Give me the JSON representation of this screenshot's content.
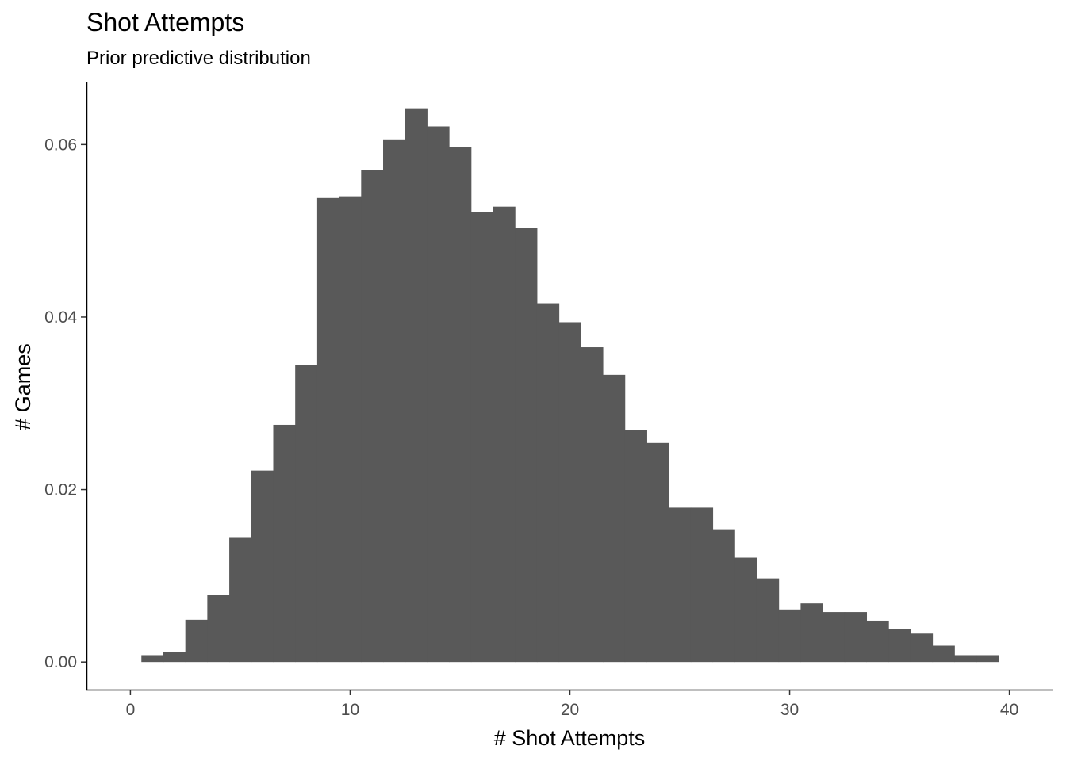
{
  "chart_data": {
    "type": "bar",
    "title": "Shot Attempts",
    "subtitle": "Prior predictive distribution",
    "xlabel": "# Shot Attempts",
    "ylabel": "# Games",
    "xlim": [
      -2,
      42
    ],
    "ylim": [
      -0.0032,
      0.0672
    ],
    "x_ticks": [
      0,
      10,
      20,
      30,
      40
    ],
    "y_ticks": [
      0.0,
      0.02,
      0.04,
      0.06
    ],
    "y_tick_labels": [
      "0.00",
      "0.02",
      "0.04",
      "0.06"
    ],
    "bin_width": 1,
    "x": [
      1,
      2,
      3,
      4,
      5,
      6,
      7,
      8,
      9,
      10,
      11,
      12,
      13,
      14,
      15,
      16,
      17,
      18,
      19,
      20,
      21,
      22,
      23,
      24,
      25,
      26,
      27,
      28,
      29,
      30,
      31,
      32,
      33,
      34,
      35,
      36,
      37,
      38,
      39
    ],
    "values": [
      0.0008,
      0.0012,
      0.0049,
      0.0078,
      0.0144,
      0.0222,
      0.0275,
      0.0344,
      0.0538,
      0.054,
      0.057,
      0.0606,
      0.0642,
      0.0621,
      0.0597,
      0.0522,
      0.0528,
      0.0503,
      0.0416,
      0.0394,
      0.0365,
      0.0333,
      0.0269,
      0.0254,
      0.0179,
      0.0179,
      0.0154,
      0.0121,
      0.0097,
      0.0061,
      0.0068,
      0.0058,
      0.0058,
      0.0048,
      0.0038,
      0.0033,
      0.0019,
      0.0008,
      0.0008
    ],
    "bar_color": "#595959",
    "axis_color": "#000000",
    "grid": false
  }
}
